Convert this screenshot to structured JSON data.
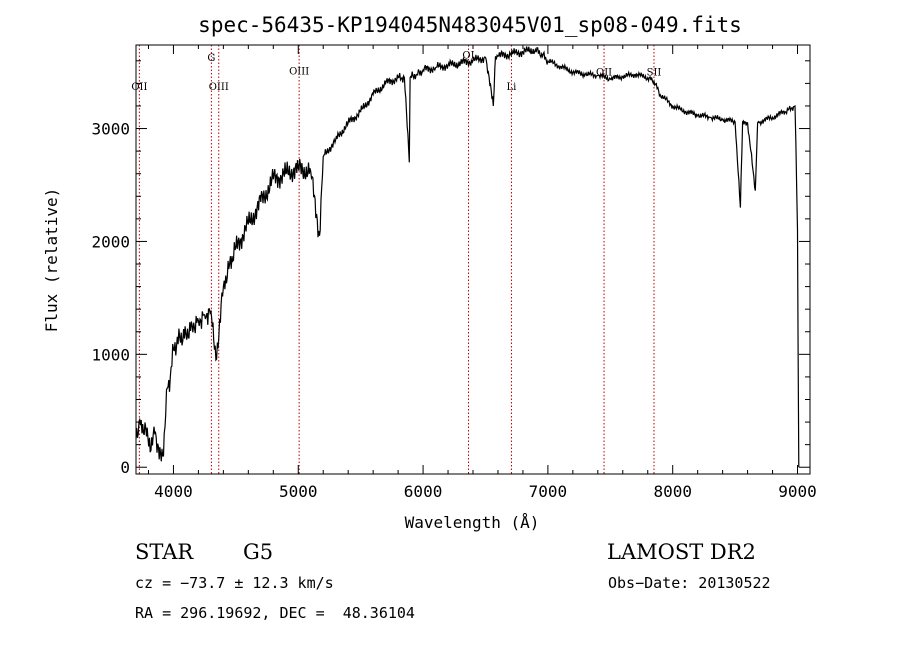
{
  "chart_data": {
    "type": "line",
    "title": "spec-56435-KP194045N483045V01_sp08-049.fits",
    "xlabel": "Wavelength (Å)",
    "ylabel": "Flux (relative)",
    "xlim": [
      3700,
      9100
    ],
    "ylim": [
      -60,
      3740
    ],
    "xticks": [
      4000,
      5000,
      6000,
      7000,
      8000,
      9000
    ],
    "yticks": [
      0,
      1000,
      2000,
      3000
    ],
    "xminor_step": 200,
    "yminor_step": 200,
    "grid": false,
    "spectral_lines": [
      {
        "label": "OII",
        "wavelength": 3727,
        "label_flux": 3340
      },
      {
        "label": "G",
        "wavelength": 4304,
        "label_flux": 3600
      },
      {
        "label": "OIII",
        "wavelength": 4363,
        "label_flux": 3340
      },
      {
        "label": "OIII",
        "wavelength": 5007,
        "label_flux": 3480
      },
      {
        "label": "OI",
        "wavelength": 6364,
        "label_flux": 3620
      },
      {
        "label": "Li",
        "wavelength": 6708,
        "label_flux": 3340
      },
      {
        "label": "OII",
        "wavelength": 7450,
        "label_flux": 3470
      },
      {
        "label": "SII",
        "wavelength": 7850,
        "label_flux": 3470
      }
    ],
    "series": [
      {
        "x": [
          3700,
          3730,
          3760,
          3790,
          3820,
          3850,
          3880,
          3920,
          3950,
          3975,
          4000,
          4050,
          4100,
          4150,
          4200,
          4250,
          4300,
          4340,
          4400,
          4450,
          4500,
          4600,
          4700,
          4800,
          4900,
          5000,
          5100,
          5170,
          5200,
          5300,
          5400,
          5500,
          5600,
          5700,
          5800,
          5850,
          5890,
          5896,
          5900,
          5950,
          6000,
          6100,
          6200,
          6300,
          6400,
          6500,
          6563,
          6580,
          6600,
          6700,
          6800,
          6900,
          6950,
          7000,
          7100,
          7200,
          7300,
          7400,
          7500,
          7600,
          7700,
          7800,
          7850,
          7900,
          8000,
          8100,
          8200,
          8300,
          8400,
          8500,
          8542,
          8560,
          8600,
          8662,
          8680,
          8700,
          8800,
          8900,
          8950,
          8980,
          9000,
          9010
        ],
        "y": [
          250,
          420,
          300,
          350,
          150,
          300,
          180,
          100,
          700,
          800,
          1050,
          1150,
          1180,
          1250,
          1300,
          1350,
          1380,
          950,
          1600,
          1800,
          1950,
          2150,
          2350,
          2550,
          2600,
          2650,
          2620,
          2050,
          2750,
          2900,
          3050,
          3150,
          3300,
          3400,
          3450,
          3450,
          2700,
          3450,
          3460,
          3480,
          3520,
          3540,
          3560,
          3580,
          3600,
          3630,
          3200,
          3640,
          3640,
          3660,
          3680,
          3700,
          3660,
          3600,
          3550,
          3500,
          3480,
          3470,
          3440,
          3460,
          3480,
          3450,
          3420,
          3300,
          3200,
          3150,
          3120,
          3100,
          3080,
          3060,
          2300,
          3060,
          3050,
          2450,
          3050,
          3060,
          3100,
          3150,
          3180,
          3200,
          2100,
          0
        ]
      }
    ]
  },
  "info": {
    "obj_class": "STAR",
    "subclass": "G5",
    "survey": "LAMOST DR2",
    "cz": "cz = −73.7 ± 12.3 km/s",
    "obs_date": "Obs−Date: 20130522",
    "coords": "RA = 296.19692, DEC =  48.36104"
  }
}
